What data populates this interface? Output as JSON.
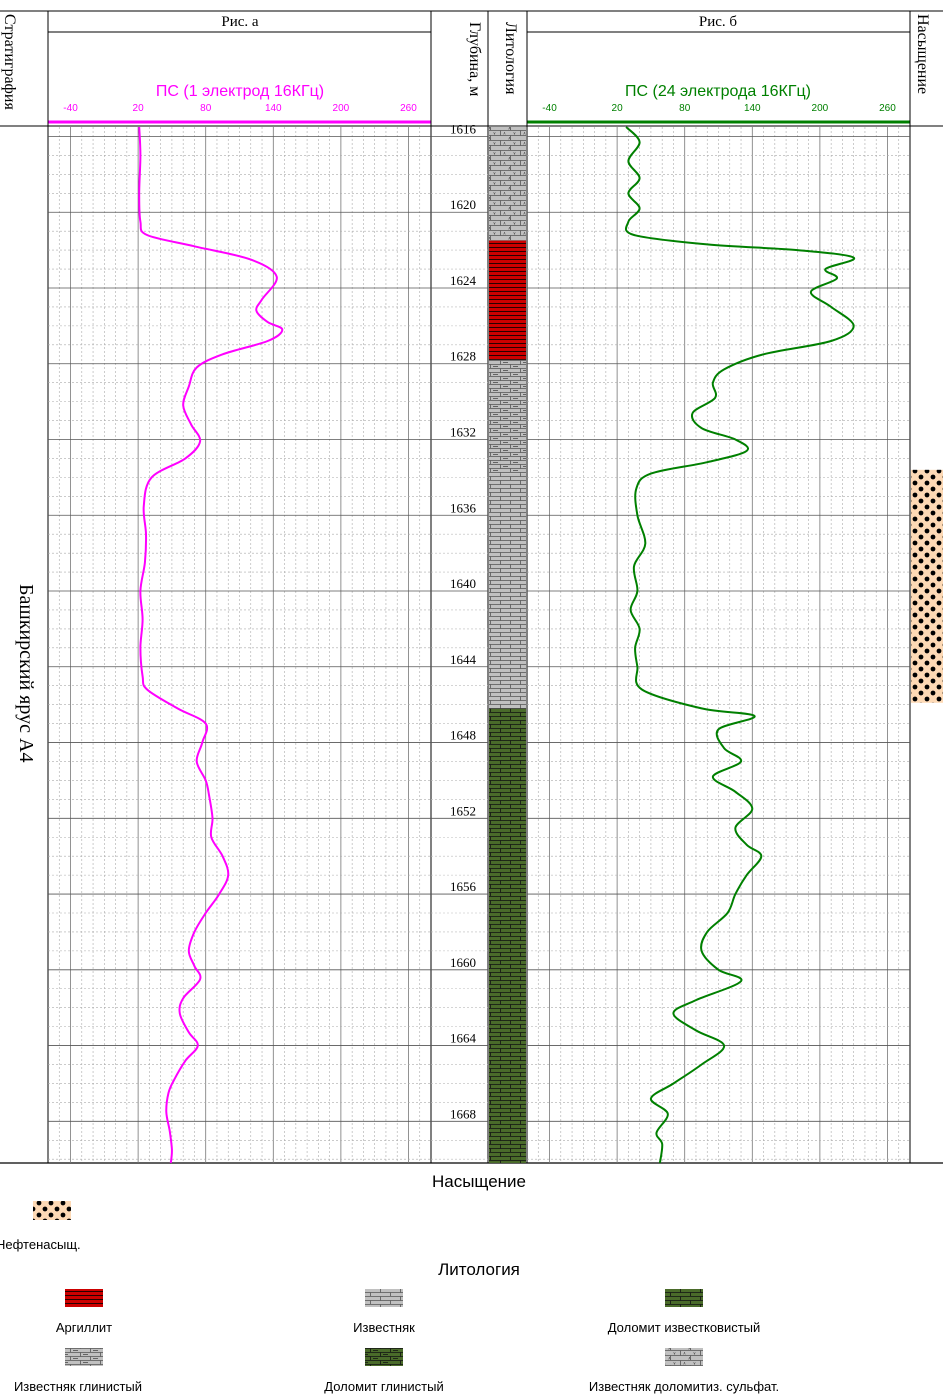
{
  "headers": {
    "stratigraphy": "Стратиграфия",
    "fig_a": "Рис. а",
    "depth": "Глубина, м",
    "lithology": "Литология",
    "fig_b": "Рис. б",
    "saturation": "Насыщение"
  },
  "stratigraphy_unit": "Башкирский ярус А4",
  "colors": {
    "ps_a": "#ff00ff",
    "ps_b": "#008000",
    "argillite": "#cc0000",
    "limestone": "#c0c0c0",
    "dolomite": "#4a6b2a",
    "oil_fill": "#fdd9b5"
  },
  "lithology_intervals": [
    {
      "from": 1615.5,
      "to": 1621.5,
      "type": "sulfate"
    },
    {
      "from": 1621.5,
      "to": 1627.8,
      "type": "argillite"
    },
    {
      "from": 1627.8,
      "to": 1633.8,
      "type": "clayey"
    },
    {
      "from": 1633.8,
      "to": 1646.2,
      "type": "limestone"
    },
    {
      "from": 1646.2,
      "to": 1670.2,
      "type": "dolomite"
    }
  ],
  "saturation_intervals": [
    {
      "from": 1633.6,
      "to": 1645.9,
      "type": "oil"
    }
  ],
  "chart_data": [
    {
      "type": "line",
      "panel": "Рис. а",
      "curve_name": "ПС (1 электрод 16КГц)",
      "x_ticks": [
        -40,
        20,
        80,
        140,
        200,
        260
      ],
      "xlim": [
        -60,
        280
      ],
      "depth_ticks": [
        1620,
        1624,
        1628,
        1632,
        1636,
        1640,
        1644,
        1648,
        1652,
        1656,
        1660,
        1664,
        1668
      ],
      "depth_range": [
        1615.5,
        1670.2
      ],
      "points": [
        [
          21,
          1615.5
        ],
        [
          22,
          1617
        ],
        [
          21,
          1619
        ],
        [
          22,
          1620.5
        ],
        [
          28,
          1621.2
        ],
        [
          70,
          1621.8
        ],
        [
          120,
          1622.5
        ],
        [
          143,
          1623.4
        ],
        [
          130,
          1624.6
        ],
        [
          125,
          1625.2
        ],
        [
          135,
          1625.8
        ],
        [
          148,
          1626.2
        ],
        [
          135,
          1626.8
        ],
        [
          95,
          1627.5
        ],
        [
          72,
          1628.2
        ],
        [
          65,
          1629.2
        ],
        [
          60,
          1630.2
        ],
        [
          67,
          1631.2
        ],
        [
          75,
          1632.1
        ],
        [
          62,
          1633
        ],
        [
          32,
          1634
        ],
        [
          25,
          1635.5
        ],
        [
          27,
          1637
        ],
        [
          26,
          1638.5
        ],
        [
          22,
          1640
        ],
        [
          24,
          1641.5
        ],
        [
          22,
          1643
        ],
        [
          24,
          1644.5
        ],
        [
          28,
          1645.2
        ],
        [
          55,
          1646.2
        ],
        [
          80,
          1647
        ],
        [
          77,
          1648
        ],
        [
          72,
          1649
        ],
        [
          80,
          1650
        ],
        [
          83,
          1650.8
        ],
        [
          86,
          1652
        ],
        [
          85,
          1653
        ],
        [
          95,
          1654
        ],
        [
          100,
          1655
        ],
        [
          92,
          1656
        ],
        [
          80,
          1657
        ],
        [
          70,
          1658
        ],
        [
          65,
          1659
        ],
        [
          70,
          1659.8
        ],
        [
          75,
          1660.5
        ],
        [
          60,
          1661.5
        ],
        [
          57,
          1662.3
        ],
        [
          65,
          1663.3
        ],
        [
          73,
          1664
        ],
        [
          62,
          1664.8
        ],
        [
          52,
          1665.8
        ],
        [
          47,
          1666.5
        ],
        [
          45,
          1667.5
        ],
        [
          48,
          1668.5
        ],
        [
          50,
          1669.5
        ],
        [
          49,
          1670.2
        ]
      ]
    },
    {
      "type": "line",
      "panel": "Рис. б",
      "curve_name": "ПС (24 электрода 16КГц)",
      "x_ticks": [
        -40,
        20,
        80,
        140,
        200,
        260
      ],
      "xlim": [
        -60,
        280
      ],
      "depth_ticks": [
        1620,
        1624,
        1628,
        1632,
        1636,
        1640,
        1644,
        1648,
        1652,
        1656,
        1660,
        1664,
        1668
      ],
      "depth_range": [
        1615.5,
        1670.2
      ],
      "points": [
        [
          28,
          1615.5
        ],
        [
          40,
          1616.3
        ],
        [
          30,
          1617.3
        ],
        [
          40,
          1618.2
        ],
        [
          30,
          1619
        ],
        [
          40,
          1619.8
        ],
        [
          30,
          1620.5
        ],
        [
          35,
          1621.2
        ],
        [
          100,
          1621.7
        ],
        [
          180,
          1622
        ],
        [
          230,
          1622.4
        ],
        [
          205,
          1623
        ],
        [
          215,
          1623.5
        ],
        [
          192,
          1624.2
        ],
        [
          210,
          1625
        ],
        [
          230,
          1626
        ],
        [
          210,
          1626.8
        ],
        [
          150,
          1627.5
        ],
        [
          115,
          1628.3
        ],
        [
          105,
          1629
        ],
        [
          107,
          1629.8
        ],
        [
          87,
          1630.6
        ],
        [
          95,
          1631.4
        ],
        [
          125,
          1632
        ],
        [
          135,
          1632.6
        ],
        [
          100,
          1633.2
        ],
        [
          50,
          1633.8
        ],
        [
          37,
          1634.6
        ],
        [
          38,
          1636
        ],
        [
          45,
          1637.5
        ],
        [
          35,
          1638.7
        ],
        [
          38,
          1640
        ],
        [
          32,
          1641
        ],
        [
          40,
          1642
        ],
        [
          36,
          1643
        ],
        [
          38,
          1644
        ],
        [
          42,
          1645.2
        ],
        [
          95,
          1646.2
        ],
        [
          142,
          1646.6
        ],
        [
          110,
          1647.3
        ],
        [
          115,
          1648.3
        ],
        [
          130,
          1649
        ],
        [
          105,
          1649.8
        ],
        [
          125,
          1650.6
        ],
        [
          140,
          1651.5
        ],
        [
          125,
          1652.5
        ],
        [
          135,
          1653.4
        ],
        [
          148,
          1654
        ],
        [
          135,
          1655
        ],
        [
          125,
          1656
        ],
        [
          118,
          1657
        ],
        [
          100,
          1658
        ],
        [
          95,
          1659
        ],
        [
          110,
          1660
        ],
        [
          130,
          1660.6
        ],
        [
          90,
          1661.6
        ],
        [
          70,
          1662.3
        ],
        [
          90,
          1663.2
        ],
        [
          115,
          1664
        ],
        [
          95,
          1665
        ],
        [
          70,
          1666
        ],
        [
          50,
          1666.8
        ],
        [
          65,
          1667.6
        ],
        [
          55,
          1668.6
        ],
        [
          60,
          1669.2
        ],
        [
          58,
          1670.2
        ]
      ]
    }
  ],
  "legend": {
    "saturation_title": "Насыщение",
    "oil_label": "Нефтенасыщ.",
    "lithology_title": "Литология",
    "items": [
      {
        "type": "argillite",
        "label": "Аргиллит"
      },
      {
        "type": "limestone",
        "label": "Известняк"
      },
      {
        "type": "dolomite_calc",
        "label": "Доломит известковистый"
      },
      {
        "type": "clayey",
        "label": "Известняк глинистый"
      },
      {
        "type": "dolomite_clay",
        "label": "Доломит глинистый"
      },
      {
        "type": "sulfate",
        "label": "Известняк доломитиз. сульфат."
      }
    ]
  }
}
